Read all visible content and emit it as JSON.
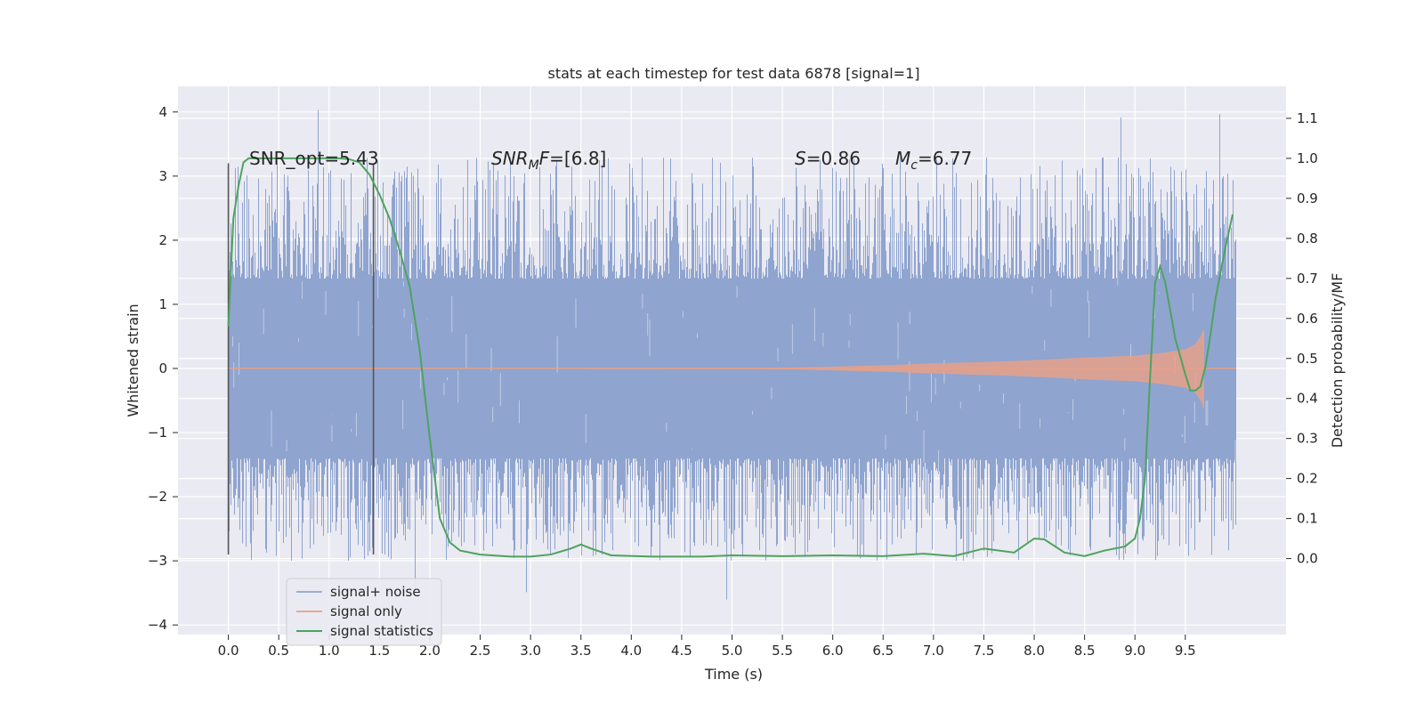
{
  "chart_data": {
    "type": "line",
    "title": "stats at each timestep for test data 6878 [signal=1]",
    "xlabel": "Time (s)",
    "ylabel": "Whitened strain",
    "ylabel_right": "Detection probability/MF",
    "xlim": [
      -0.5,
      10.5
    ],
    "ylim": [
      -4.15,
      4.4
    ],
    "ylim_right": [
      -0.19,
      1.18
    ],
    "grid": true,
    "legend_position": "lower-left",
    "x_ticks": [
      "0.0",
      "0.5",
      "1.0",
      "1.5",
      "2.0",
      "2.5",
      "3.0",
      "3.5",
      "4.0",
      "4.5",
      "5.0",
      "5.5",
      "6.0",
      "6.5",
      "7.0",
      "7.5",
      "8.0",
      "8.5",
      "9.0",
      "9.5"
    ],
    "x_tick_values": [
      0.0,
      0.5,
      1.0,
      1.5,
      2.0,
      2.5,
      3.0,
      3.5,
      4.0,
      4.5,
      5.0,
      5.5,
      6.0,
      6.5,
      7.0,
      7.5,
      8.0,
      8.5,
      9.0,
      9.5
    ],
    "y_ticks": [
      "4",
      "3",
      "2",
      "1",
      "0",
      "−1",
      "−2",
      "−3",
      "−4"
    ],
    "y_tick_values": [
      4,
      3,
      2,
      1,
      0,
      -1,
      -2,
      -3,
      -4
    ],
    "y_right_ticks": [
      "1.1",
      "1.0",
      "0.9",
      "0.8",
      "0.7",
      "0.6",
      "0.5",
      "0.4",
      "0.3",
      "0.2",
      "0.1",
      "0.0"
    ],
    "y_right_tick_values": [
      1.1,
      1.0,
      0.9,
      0.8,
      0.7,
      0.6,
      0.5,
      0.4,
      0.3,
      0.2,
      0.1,
      0.0
    ],
    "annotations": {
      "snr_opt": "SNR_opt=5.43",
      "snr_mf": "=[6.8]",
      "snr_mf_label": "SNR",
      "snr_mf_sub": "M",
      "snr_mf_tail": "F",
      "s_label": "S",
      "s_value": "=0.86",
      "mc_label": "M",
      "mc_sub": "c",
      "mc_value": "=6.77"
    },
    "vertical_lines_x": [
      0.0,
      1.44
    ],
    "vertical_lines_range": [
      -2.9,
      3.2
    ],
    "series": [
      {
        "name": "signal+ noise",
        "color": "#8fa4cf",
        "x_range": [
          0.0,
          10.0
        ],
        "envelope_abs": 1.4,
        "spikes_max": 4.05,
        "spikes_min": -3.7
      },
      {
        "name": "signal only",
        "color": "#e6a189",
        "x": [
          0.0,
          5.5,
          6.0,
          6.5,
          7.0,
          7.5,
          8.0,
          8.5,
          9.0,
          9.3,
          9.5,
          9.6,
          9.65,
          9.68
        ],
        "amplitude": [
          0.0,
          0.01,
          0.03,
          0.05,
          0.08,
          0.1,
          0.13,
          0.17,
          0.2,
          0.25,
          0.3,
          0.38,
          0.5,
          0.6
        ]
      },
      {
        "name": "signal statistics",
        "color": "#4ea35f",
        "x": [
          0.0,
          0.05,
          0.1,
          0.15,
          0.2,
          0.3,
          0.5,
          0.8,
          1.0,
          1.1,
          1.2,
          1.3,
          1.4,
          1.5,
          1.6,
          1.7,
          1.8,
          1.9,
          2.0,
          2.1,
          2.2,
          2.3,
          2.5,
          2.8,
          3.0,
          3.2,
          3.4,
          3.5,
          3.6,
          3.8,
          4.2,
          4.7,
          5.0,
          5.5,
          6.0,
          6.5,
          6.9,
          7.2,
          7.5,
          7.8,
          8.0,
          8.1,
          8.3,
          8.5,
          8.7,
          8.9,
          9.0,
          9.05,
          9.1,
          9.15,
          9.2,
          9.25,
          9.3,
          9.4,
          9.5,
          9.55,
          9.6,
          9.65,
          9.7,
          9.75,
          9.8,
          9.9,
          9.97
        ],
        "y": [
          0.58,
          0.85,
          0.93,
          0.99,
          1.0,
          1.0,
          1.0,
          1.0,
          1.0,
          1.0,
          0.998,
          0.99,
          0.96,
          0.91,
          0.85,
          0.77,
          0.68,
          0.52,
          0.3,
          0.1,
          0.04,
          0.02,
          0.01,
          0.005,
          0.005,
          0.01,
          0.025,
          0.035,
          0.025,
          0.008,
          0.005,
          0.005,
          0.008,
          0.006,
          0.008,
          0.006,
          0.012,
          0.006,
          0.025,
          0.015,
          0.05,
          0.048,
          0.015,
          0.006,
          0.02,
          0.03,
          0.05,
          0.1,
          0.2,
          0.45,
          0.69,
          0.73,
          0.69,
          0.55,
          0.46,
          0.42,
          0.42,
          0.43,
          0.48,
          0.56,
          0.65,
          0.78,
          0.86
        ]
      }
    ]
  }
}
